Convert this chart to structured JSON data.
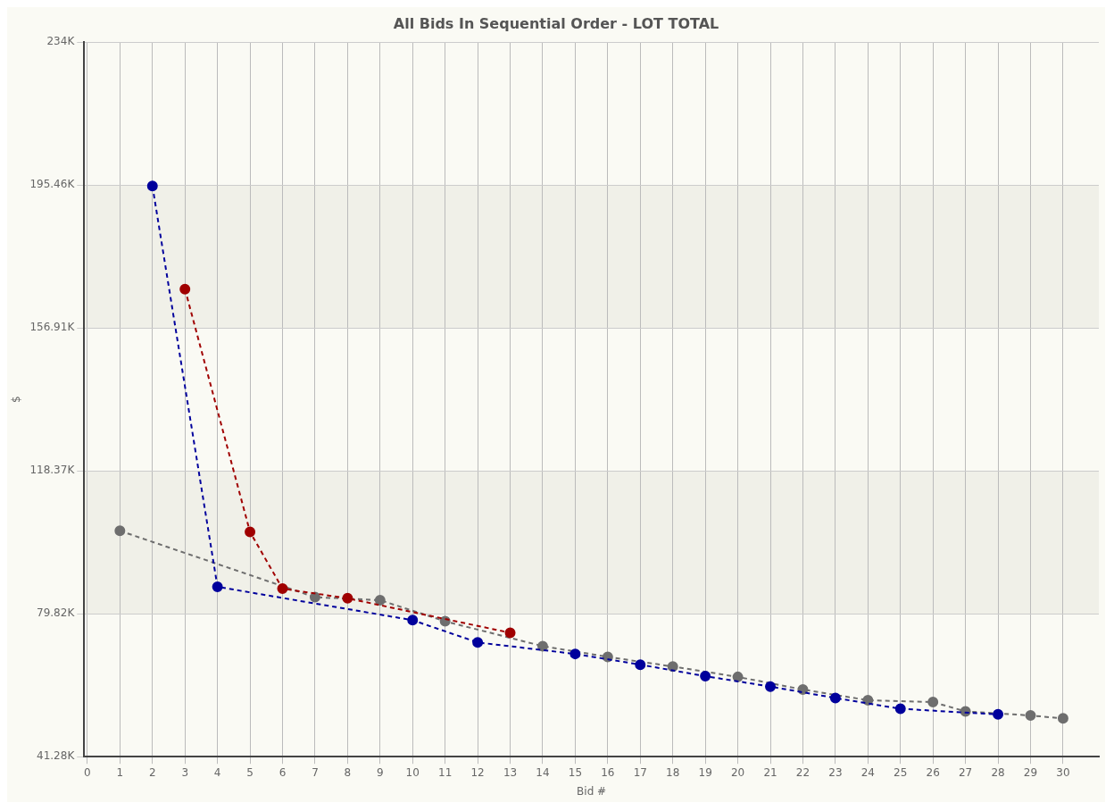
{
  "chart_data": {
    "type": "line",
    "title": "All Bids In Sequential Order - LOT TOTAL",
    "xlabel": "Bid #",
    "ylabel": "$",
    "series": [
      {
        "color": "#00009c",
        "x": [
          2,
          4,
          10,
          12,
          15,
          17,
          19,
          21,
          23,
          25,
          28
        ],
        "values": [
          195.2,
          87.1,
          78.1,
          72.1,
          69.0,
          66.1,
          63.0,
          60.2,
          57.1,
          54.2,
          52.7
        ]
      },
      {
        "color": "#a00000",
        "x": [
          3,
          5,
          6,
          8,
          13
        ],
        "values": [
          167.4,
          101.9,
          86.6,
          84.0,
          74.7
        ]
      },
      {
        "color": "#6e6e6e",
        "x": [
          1,
          7,
          9,
          11,
          14,
          16,
          18,
          20,
          22,
          24,
          26,
          27,
          29,
          30
        ],
        "values": [
          102.2,
          84.3,
          83.5,
          77.8,
          71.1,
          68.2,
          65.6,
          62.8,
          59.4,
          56.5,
          56.0,
          53.5,
          52.4,
          51.6
        ]
      }
    ],
    "xlim": [
      -0.1,
      31.1
    ],
    "xticks": [
      0,
      1,
      2,
      3,
      4,
      5,
      6,
      7,
      8,
      9,
      10,
      11,
      12,
      13,
      14,
      15,
      16,
      17,
      18,
      19,
      20,
      21,
      22,
      23,
      24,
      25,
      26,
      27,
      28,
      29,
      30
    ],
    "ylim": [
      41.28,
      234
    ],
    "yticks": [
      {
        "value": 41.28,
        "label": "41.28K"
      },
      {
        "value": 79.82,
        "label": "79.82K"
      },
      {
        "value": 118.37,
        "label": "118.37K"
      },
      {
        "value": 156.91,
        "label": "156.91K"
      },
      {
        "value": 195.46,
        "label": "195.46K"
      },
      {
        "value": 234,
        "label": "234K"
      }
    ],
    "grid": true,
    "marker": "circle",
    "line_style": "dashed",
    "legend": false
  }
}
